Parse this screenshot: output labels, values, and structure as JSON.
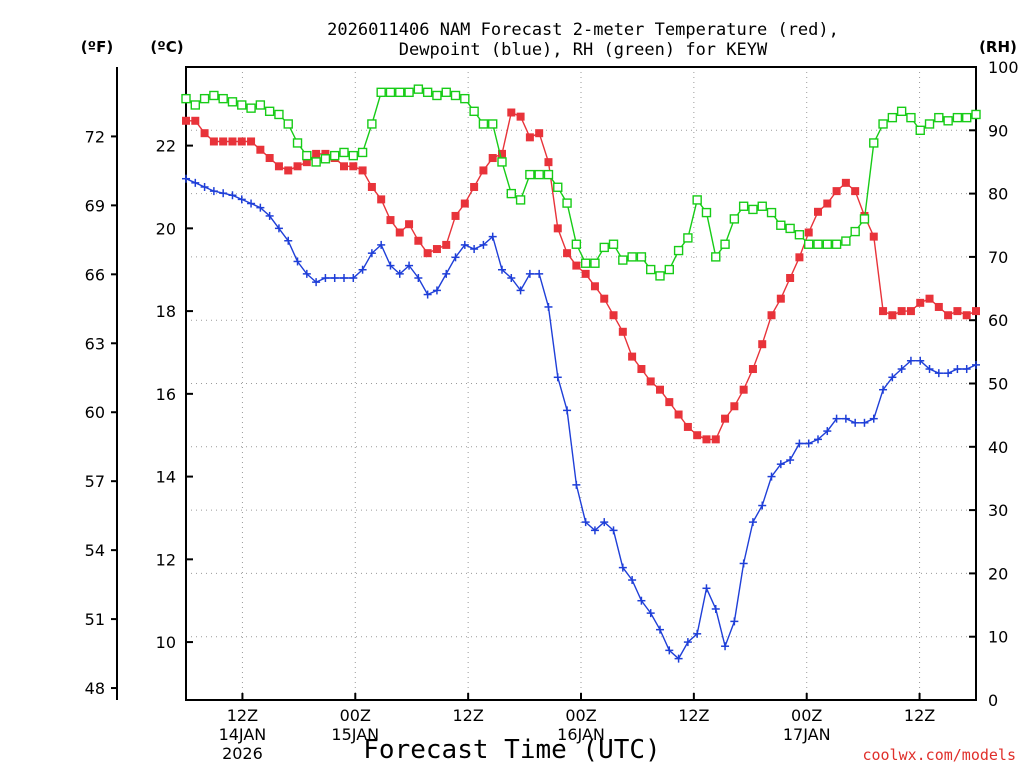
{
  "chart_data": {
    "type": "line",
    "title_line1": "2026011406 NAM Forecast 2-meter Temperature (red),",
    "title_line2": "Dewpoint (blue), RH (green) for KEYW",
    "units": {
      "left_outer": "(ºF)",
      "left_inner": "(ºC)",
      "right": "(RH)"
    },
    "xlabel": "Forecast Time (UTC)",
    "credit": "coolwx.com/models",
    "x_ticks": [
      {
        "hour": 12,
        "lines": [
          "12Z",
          "14JAN",
          "2026"
        ]
      },
      {
        "hour": 24,
        "lines": [
          "00Z",
          "15JAN"
        ]
      },
      {
        "hour": 36,
        "lines": [
          "12Z"
        ]
      },
      {
        "hour": 48,
        "lines": [
          "00Z",
          "16JAN"
        ]
      },
      {
        "hour": 60,
        "lines": [
          "12Z"
        ]
      },
      {
        "hour": 72,
        "lines": [
          "00Z",
          "17JAN"
        ]
      },
      {
        "hour": 84,
        "lines": [
          "12Z"
        ]
      }
    ],
    "xlim": [
      6,
      90
    ],
    "celsius_axis": {
      "range": [
        8.6,
        23.9
      ],
      "ticks": [
        10,
        12,
        14,
        16,
        18,
        20,
        22
      ]
    },
    "fahrenheit_axis": {
      "ticks": [
        48,
        51,
        54,
        57,
        60,
        63,
        66,
        69,
        72
      ]
    },
    "rh_axis": {
      "range": [
        0,
        100
      ],
      "ticks": [
        0,
        10,
        20,
        30,
        40,
        50,
        60,
        70,
        80,
        90,
        100
      ]
    },
    "grid": true,
    "series": [
      {
        "name": "Temperature",
        "color": "#e8333a",
        "axis": "celsius",
        "marker": "filled-square",
        "values": [
          22.6,
          22.6,
          22.3,
          22.1,
          22.1,
          22.1,
          22.1,
          22.1,
          21.9,
          21.7,
          21.5,
          21.4,
          21.5,
          21.6,
          21.8,
          21.8,
          21.7,
          21.5,
          21.5,
          21.4,
          21.0,
          20.7,
          20.2,
          19.9,
          20.1,
          19.7,
          19.4,
          19.5,
          19.6,
          20.3,
          20.6,
          21.0,
          21.4,
          21.7,
          21.8,
          22.8,
          22.7,
          22.2,
          22.3,
          21.6,
          20.0,
          19.4,
          19.1,
          18.9,
          18.6,
          18.3,
          17.9,
          17.5,
          16.9,
          16.6,
          16.3,
          16.1,
          15.8,
          15.5,
          15.2,
          15.0,
          14.9,
          14.9,
          15.4,
          15.7,
          16.1,
          16.6,
          17.2,
          17.9,
          18.3,
          18.8,
          19.3,
          19.9,
          20.4,
          20.6,
          20.9,
          21.1,
          20.9,
          20.3,
          19.8,
          18.0,
          17.9,
          18.0,
          18.0,
          18.2,
          18.3,
          18.1,
          17.9,
          18.0,
          17.9,
          18.0
        ]
      },
      {
        "name": "Dewpoint",
        "color": "#1f3fd8",
        "axis": "celsius",
        "marker": "plus",
        "values": [
          21.2,
          21.1,
          21.0,
          20.9,
          20.85,
          20.8,
          20.7,
          20.6,
          20.5,
          20.3,
          20.0,
          19.7,
          19.2,
          18.9,
          18.7,
          18.8,
          18.8,
          18.8,
          18.8,
          19.0,
          19.4,
          19.6,
          19.1,
          18.9,
          19.1,
          18.8,
          18.4,
          18.5,
          18.9,
          19.3,
          19.6,
          19.5,
          19.6,
          19.8,
          19.0,
          18.8,
          18.5,
          18.9,
          18.9,
          18.1,
          16.4,
          15.6,
          13.8,
          12.9,
          12.7,
          12.9,
          12.7,
          11.8,
          11.5,
          11.0,
          10.7,
          10.3,
          9.8,
          9.6,
          10.0,
          10.2,
          11.3,
          10.8,
          9.9,
          10.5,
          11.9,
          12.9,
          13.3,
          14.0,
          14.3,
          14.4,
          14.8,
          14.8,
          14.9,
          15.1,
          15.4,
          15.4,
          15.3,
          15.3,
          15.4,
          16.1,
          16.4,
          16.6,
          16.8,
          16.8,
          16.6,
          16.5,
          16.5,
          16.6,
          16.6,
          16.7
        ]
      },
      {
        "name": "RH",
        "color": "#17cc17",
        "axis": "rh",
        "marker": "open-square",
        "values": [
          95,
          94,
          95,
          95.5,
          95,
          94.5,
          94,
          93.5,
          94,
          93,
          92.5,
          91,
          88,
          86,
          85,
          85.5,
          86,
          86.5,
          86,
          86.5,
          91,
          96,
          96,
          96,
          96,
          96.5,
          96,
          95.5,
          96,
          95.5,
          95,
          93,
          91,
          91,
          85,
          80,
          79,
          83,
          83,
          83,
          81,
          78.5,
          72,
          69,
          69,
          71.5,
          72,
          69.5,
          70,
          70,
          68,
          67,
          68,
          71,
          73,
          79,
          77,
          70,
          72,
          76,
          78,
          77.5,
          78,
          77,
          75,
          74.5,
          73.5,
          72,
          72,
          72,
          72,
          72.5,
          74,
          76,
          88,
          91,
          92,
          93,
          92,
          90,
          91,
          92,
          91.5,
          92,
          92,
          92.5
        ]
      }
    ]
  }
}
